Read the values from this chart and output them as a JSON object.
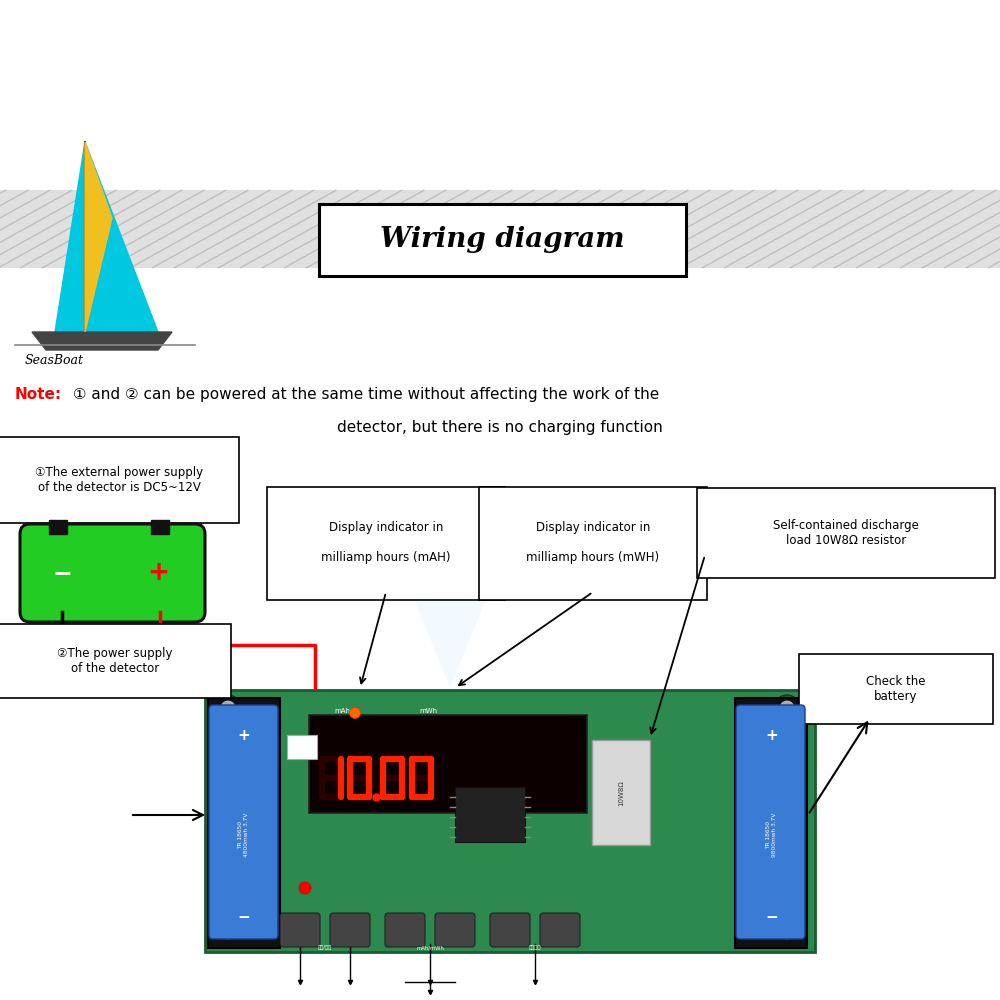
{
  "title": "Wiring diagram",
  "bg_color": "#ffffff",
  "logo_text": "SeasBoat",
  "note_line1_red": "Note:",
  "note_line1_black": " ① and ② can be powered at the same time without affecting the work of the",
  "note_line2": "detector, but there is no charging function",
  "label1_text": "①The external power supply\nof the detector is DC5~12V",
  "label2_text": "②The power supply\nof the detector",
  "label3_text": "Display indicator in\n\nmilliamp hours (mAH)",
  "label4_text": "Display indicator in\n\nmilliamp hours (mWH)",
  "label5_text": "Self-contained discharge\nload 10W8Ω resistor",
  "label6_text": "Check the\nbattery",
  "board_color": "#2d8a4e",
  "battery_color": "#3a7bd5",
  "display_bg": "#0d0000",
  "display_digit_color": "#ff2200",
  "power_supply_green": "#22cc22",
  "stripe_fill": "#e0e0e0",
  "stripe_line": "#bbbbbb"
}
